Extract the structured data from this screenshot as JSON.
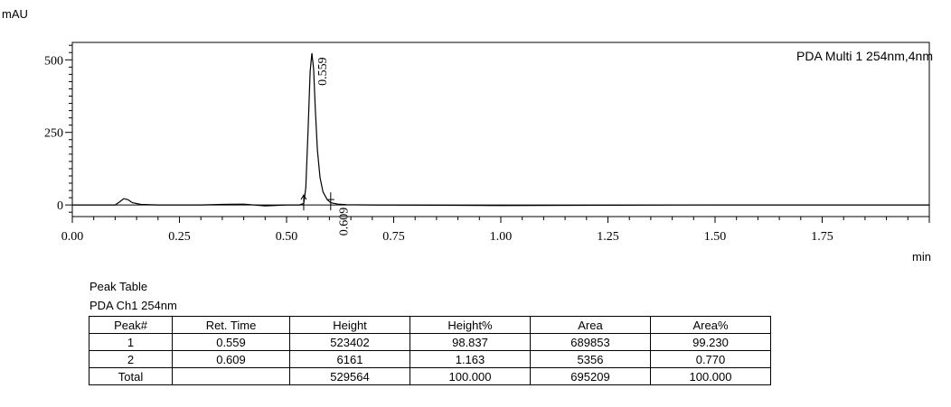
{
  "chart_data": {
    "type": "line",
    "ylabel": "mAU",
    "xlabel": "min",
    "legend": "PDA Multi 1 254nm,4nm",
    "xlim": [
      0,
      2
    ],
    "ylim": [
      -40,
      560
    ],
    "x_ticks": [
      0.0,
      0.25,
      0.5,
      0.75,
      1.0,
      1.25,
      1.5,
      1.75
    ],
    "x_tick_labels": [
      "0.00",
      "0.25",
      "0.50",
      "0.75",
      "1.00",
      "1.25",
      "1.50",
      "1.75"
    ],
    "y_ticks": [
      0,
      250,
      500
    ],
    "y_tick_labels": [
      "0",
      "250",
      "500"
    ],
    "series": [
      {
        "points": [
          [
            0.0,
            0
          ],
          [
            0.1,
            0
          ],
          [
            0.11,
            10
          ],
          [
            0.12,
            22
          ],
          [
            0.13,
            18
          ],
          [
            0.14,
            8
          ],
          [
            0.16,
            2
          ],
          [
            0.2,
            0
          ],
          [
            0.3,
            0
          ],
          [
            0.35,
            2
          ],
          [
            0.4,
            3
          ],
          [
            0.45,
            -3
          ],
          [
            0.5,
            0
          ],
          [
            0.53,
            0
          ],
          [
            0.54,
            5
          ],
          [
            0.545,
            60
          ],
          [
            0.55,
            250
          ],
          [
            0.555,
            460
          ],
          [
            0.559,
            523
          ],
          [
            0.563,
            470
          ],
          [
            0.567,
            330
          ],
          [
            0.572,
            190
          ],
          [
            0.578,
            95
          ],
          [
            0.585,
            45
          ],
          [
            0.595,
            18
          ],
          [
            0.603,
            8
          ],
          [
            0.609,
            6
          ],
          [
            0.62,
            3
          ],
          [
            0.64,
            1
          ],
          [
            0.7,
            0
          ],
          [
            1.0,
            -2
          ],
          [
            1.5,
            0
          ],
          [
            2.0,
            0
          ]
        ]
      }
    ],
    "peak_annotations": [
      {
        "x": 0.559,
        "y": 523,
        "label": "0.559"
      },
      {
        "x": 0.609,
        "y": 6,
        "label": "0.609"
      }
    ]
  },
  "table": {
    "title": "Peak Table",
    "subtitle": "PDA Ch1 254nm",
    "headers": [
      "Peak#",
      "Ret. Time",
      "Height",
      "Height%",
      "Area",
      "Area%"
    ],
    "rows": [
      [
        "1",
        "0.559",
        "523402",
        "98.837",
        "689853",
        "99.230"
      ],
      [
        "2",
        "0.609",
        "6161",
        "1.163",
        "5356",
        "0.770"
      ],
      [
        "Total",
        "",
        "529564",
        "100.000",
        "695209",
        "100.000"
      ]
    ]
  }
}
